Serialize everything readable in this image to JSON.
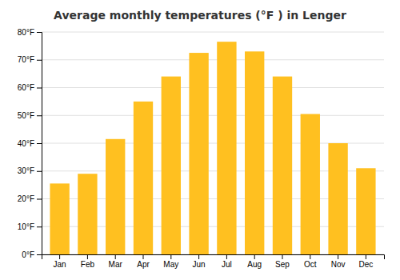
{
  "chart_data": {
    "type": "bar",
    "title": "Average monthly temperatures (°F ) in Lenger",
    "categories": [
      "Jan",
      "Feb",
      "Mar",
      "Apr",
      "May",
      "Jun",
      "Jul",
      "Aug",
      "Sep",
      "Oct",
      "Nov",
      "Dec"
    ],
    "values": [
      25.5,
      29.0,
      41.5,
      55.0,
      64.0,
      72.5,
      76.5,
      73.0,
      64.0,
      50.5,
      40.0,
      31.0
    ],
    "color": "#FFC020",
    "ylim": [
      0,
      80
    ],
    "yticks": [
      {
        "value": 0,
        "label": "0°F"
      },
      {
        "value": 10,
        "label": "10°F"
      },
      {
        "value": 20,
        "label": "20°F"
      },
      {
        "value": 30,
        "label": "30°F"
      },
      {
        "value": 40,
        "label": "40°F"
      },
      {
        "value": 50,
        "label": "50°F"
      },
      {
        "value": 60,
        "label": "60°F"
      },
      {
        "value": 70,
        "label": "70°F"
      },
      {
        "value": 80,
        "label": "80°F"
      }
    ],
    "grid": true
  }
}
